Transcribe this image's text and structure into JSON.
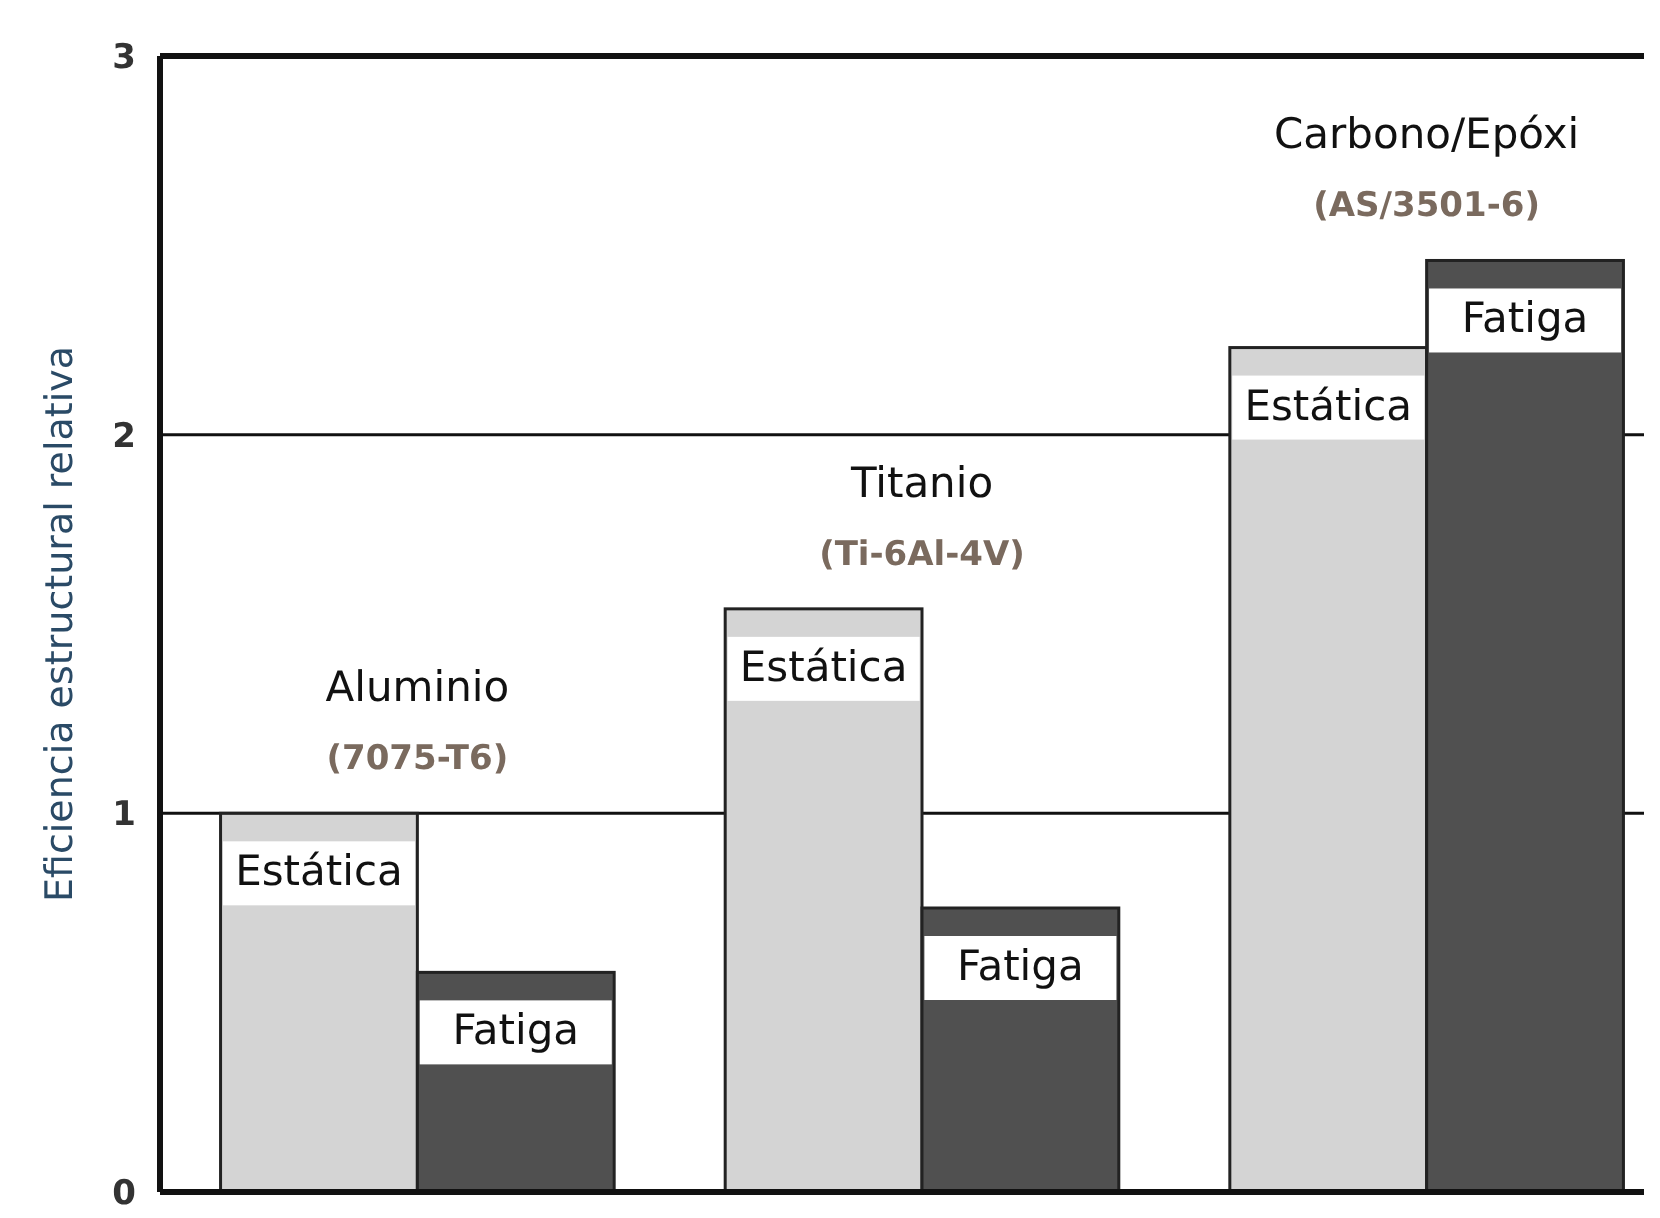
{
  "chart_data": {
    "type": "bar",
    "ylabel": "Eficiencia estructural relativa",
    "categories": [
      "Aluminio\n(7075-T6)",
      "Titanio\n(Ti-6Al-4V)",
      "Carbono/Epóxi\n(AS/3501-6)"
    ],
    "series": [
      {
        "name": "Estática",
        "color": "#d4d4d4",
        "values": [
          1.0,
          1.54,
          2.23
        ]
      },
      {
        "name": "Fatiga",
        "color": "#505050",
        "values": [
          0.58,
          0.75,
          2.46
        ]
      }
    ],
    "ylim": [
      0,
      3
    ],
    "yticks": [
      0,
      1,
      2,
      3
    ],
    "grid": "y",
    "tick_labels": "y"
  }
}
